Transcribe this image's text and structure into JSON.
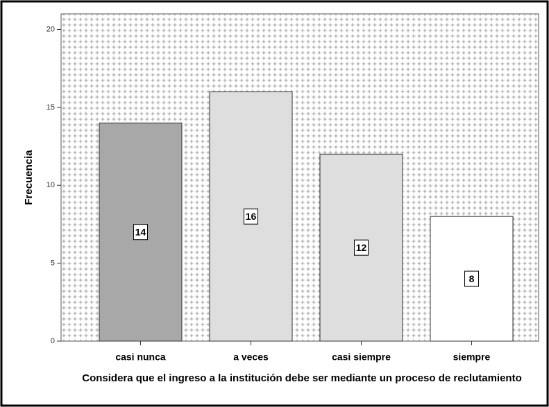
{
  "chart_data": {
    "type": "bar",
    "categories": [
      "casi nunca",
      "a veces",
      "casi siempre",
      "siempre"
    ],
    "values": [
      14,
      16,
      12,
      8
    ],
    "colors": [
      "#a8a8a8",
      "#dedede",
      "#dedede",
      "#ffffff"
    ],
    "xlabel": "Considera que el ingreso a la institución debe ser mediante un proceso de reclutamiento",
    "ylabel": "Frecuencia",
    "ylim": [
      0,
      21
    ],
    "yticks": [
      0,
      5,
      10,
      15,
      20
    ]
  }
}
